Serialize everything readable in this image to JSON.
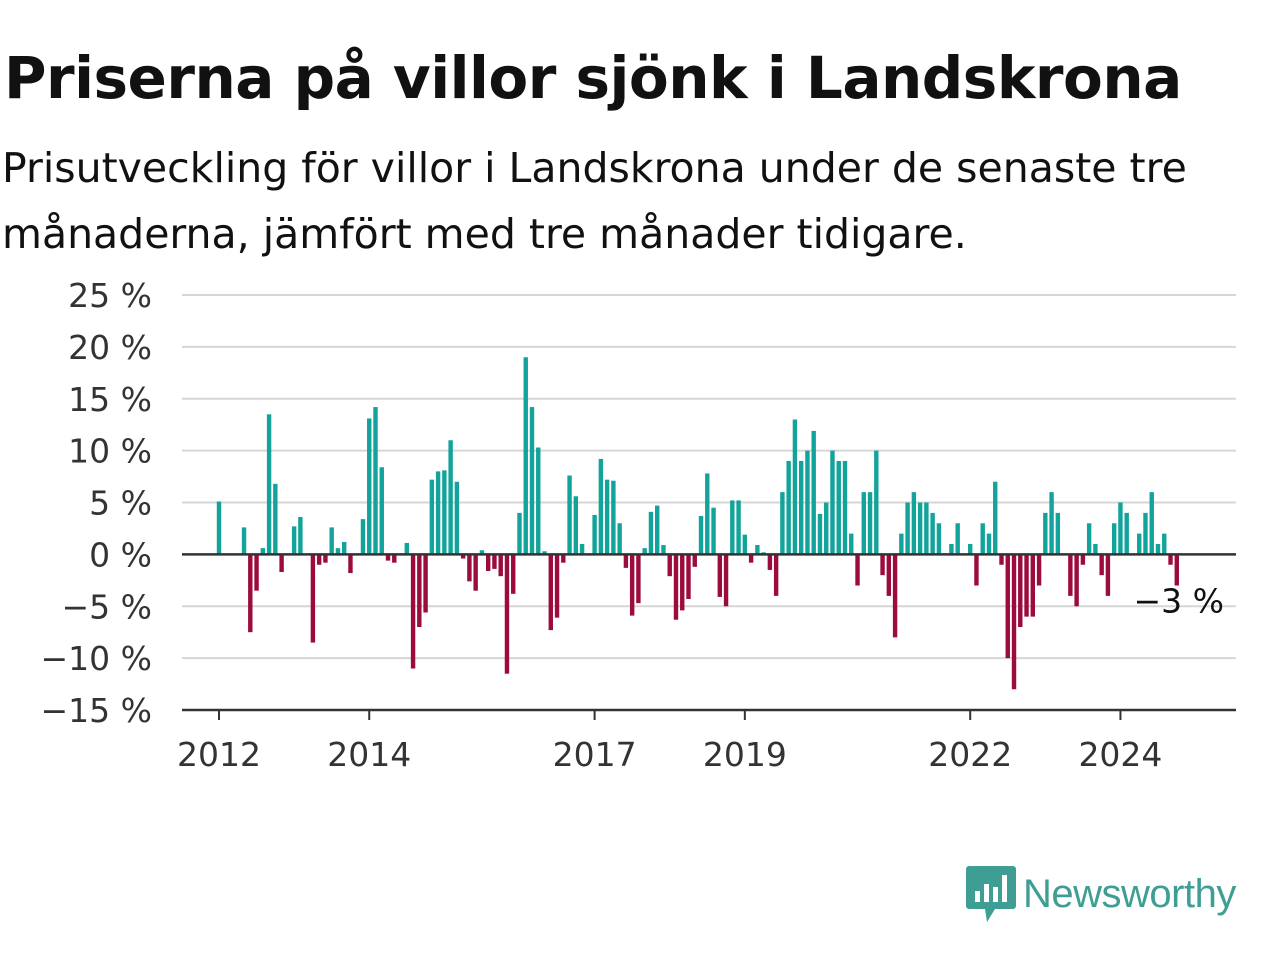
{
  "title": "Priserna på villor sjönk i Landskrona",
  "subtitle": "Prisutveckling för villor i Landskrona under de senaste tre månaderna, jämfört med tre månader tidigare.",
  "brand": {
    "name": "Newsworthy",
    "icon": "newsworthy-logo-icon",
    "color": "#3f9e94"
  },
  "colors": {
    "positive": "#12a39a",
    "negative": "#9b0b3d",
    "grid": "#d6d6d6",
    "axis": "#333333"
  },
  "chart_data": {
    "type": "bar",
    "x_start": "2012-01",
    "x_step": "month",
    "ylim": [
      -15,
      25
    ],
    "yticks": [
      25,
      20,
      15,
      10,
      5,
      0,
      -5,
      -10,
      -15
    ],
    "ytick_labels": [
      "25 %",
      "20 %",
      "15 %",
      "10 %",
      "5 %",
      "0 %",
      "−5 %",
      "−10 %",
      "−15 %"
    ],
    "xticks": [
      {
        "label": "2012",
        "date": "2012-01"
      },
      {
        "label": "2014",
        "date": "2014-01"
      },
      {
        "label": "2017",
        "date": "2017-01"
      },
      {
        "label": "2019",
        "date": "2019-01"
      },
      {
        "label": "2022",
        "date": "2022-01"
      },
      {
        "label": "2024",
        "date": "2024-01"
      }
    ],
    "annotation": {
      "text": "−3 %",
      "date": "2025-05"
    },
    "values": [
      5.1,
      null,
      null,
      null,
      2.6,
      -7.5,
      -3.5,
      0.6,
      13.5,
      6.8,
      -1.7,
      null,
      2.7,
      3.6,
      null,
      -8.5,
      -1.0,
      -0.8,
      2.6,
      0.6,
      1.2,
      -1.8,
      null,
      3.4,
      13.1,
      14.2,
      8.4,
      -0.6,
      -0.8,
      null,
      1.1,
      -11.0,
      -7.0,
      -5.6,
      7.2,
      8.0,
      8.1,
      11.0,
      7.0,
      -0.4,
      -2.6,
      -3.5,
      0.4,
      -1.6,
      -1.4,
      -2.1,
      -11.5,
      -3.8,
      4.0,
      19.0,
      14.2,
      10.3,
      0.3,
      -7.3,
      -6.1,
      -0.8,
      7.6,
      5.6,
      1.0,
      null,
      3.8,
      9.2,
      7.2,
      7.1,
      3.0,
      -1.3,
      -5.9,
      -4.7,
      0.6,
      4.1,
      4.7,
      0.9,
      -2.1,
      -6.3,
      -5.4,
      -4.3,
      -1.2,
      3.7,
      7.8,
      4.5,
      -4.1,
      -5.0,
      5.2,
      5.2,
      1.9,
      -0.8,
      0.9,
      0.2,
      -1.5,
      -4.0,
      6.0,
      9.0,
      13.0,
      9.0,
      10.0,
      11.9,
      3.9,
      5.0,
      10.0,
      9.0,
      9.0,
      2.0,
      -3.0,
      6.0,
      6.0,
      10.0,
      -2.0,
      -4.0,
      -8.0,
      2.0,
      5.0,
      6.0,
      5.0,
      5.0,
      4.0,
      3.0,
      null,
      1.0,
      3.0,
      null,
      1.0,
      -3.0,
      3.0,
      2.0,
      7.0,
      -1.0,
      -10.0,
      -13.0,
      -7.0,
      -6.0,
      -6.0,
      -3.0,
      4.0,
      6.0,
      4.0,
      null,
      -4.0,
      -5.0,
      -1.0,
      3.0,
      1.0,
      -2.0,
      -4.0,
      3.0,
      5.0,
      4.0,
      null,
      2.0,
      4.0,
      6.0,
      1.0,
      2.0,
      -1.0,
      -3.0
    ]
  }
}
